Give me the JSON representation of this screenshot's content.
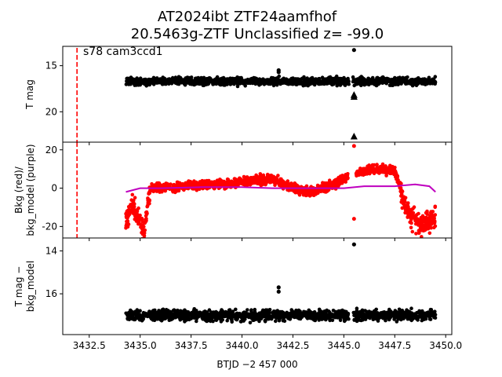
{
  "title_line1": "AT2024ibt  ZTF24aamfhof",
  "title_line2": "20.5463g-ZTF Unclassified z= -99.0",
  "annotation": "s78 cam3ccd1",
  "xlabel": "BTJD −2 457 000",
  "colors": {
    "points": "#000000",
    "bkg": "#ff0000",
    "model": "#bf00bf",
    "marker_line": "#ff0000"
  },
  "chart_data": [
    {
      "type": "scatter",
      "panel": "top",
      "ylabel": "T mag",
      "yinverted": true,
      "xlim": [
        3431.2,
        3450.3
      ],
      "ylim": [
        12.9,
        23.3
      ],
      "yticks": [
        15,
        20
      ],
      "marker_x": 3431.9,
      "band": {
        "x_start": 3434.3,
        "x_end": 3449.5,
        "center": 16.7,
        "spread": 0.6
      },
      "outliers": [
        {
          "x": 3441.8,
          "y": 15.5,
          "marker": "dot"
        },
        {
          "x": 3441.8,
          "y": 15.7,
          "marker": "dot"
        },
        {
          "x": 3445.5,
          "y": 13.3,
          "marker": "dot"
        },
        {
          "x": 3445.5,
          "y": 18.2,
          "marker": "triangle"
        },
        {
          "x": 3445.5,
          "y": 18.4,
          "marker": "triangle"
        },
        {
          "x": 3445.5,
          "y": 22.7,
          "marker": "triangle"
        }
      ]
    },
    {
      "type": "scatter",
      "panel": "middle",
      "ylabel": "Bkg (red)/\nbkg_model (purple)",
      "xlim": [
        3431.2,
        3450.3
      ],
      "ylim": [
        -26,
        24
      ],
      "yticks": [
        -20,
        0,
        20
      ],
      "marker_x": 3431.9,
      "bkg_segments": [
        {
          "x": [
            3434.3,
            3434.6,
            3434.9,
            3435.2,
            3435.5
          ],
          "y": [
            -18,
            -8,
            -15,
            -22,
            0
          ]
        },
        {
          "x": [
            3435.5,
            3437.0,
            3439.0,
            3440.5,
            3441.5,
            3442.5,
            3443.5,
            3444.5,
            3445.2
          ],
          "y": [
            0,
            1,
            2,
            4,
            5,
            0,
            -2,
            2,
            6
          ]
        },
        {
          "x": [
            3445.6,
            3446.5,
            3447.5,
            3447.9,
            3448.3,
            3448.8,
            3449.5
          ],
          "y": [
            8,
            10,
            9,
            -5,
            -15,
            -20,
            -15
          ]
        }
      ],
      "bkg_spread": 3.5,
      "bkg_outliers": [
        {
          "x": 3445.5,
          "y": 22
        },
        {
          "x": 3445.5,
          "y": -16
        }
      ],
      "model": {
        "x": [
          3434.3,
          3435.0,
          3436.0,
          3438.0,
          3440.0,
          3441.5,
          3443.0,
          3445.0,
          3446.0,
          3447.5,
          3448.5,
          3449.2,
          3449.5
        ],
        "y": [
          -2,
          0,
          0,
          0.5,
          0.5,
          0,
          0,
          0,
          1,
          1,
          2,
          1,
          -2
        ]
      }
    },
    {
      "type": "scatter",
      "panel": "bottom",
      "ylabel": "T mag −\nbkg_model",
      "yinverted": true,
      "xlim": [
        3431.2,
        3450.3
      ],
      "ylim": [
        13.4,
        17.9
      ],
      "yticks": [
        14,
        16
      ],
      "xticks": [
        3432.5,
        3435.0,
        3437.5,
        3440.0,
        3442.5,
        3445.0,
        3447.5,
        3450.0
      ],
      "xticklabels": [
        "3432.5",
        "3435.0",
        "3437.5",
        "3440.0",
        "3442.5",
        "3445.0",
        "3447.5",
        "3450.0"
      ],
      "band": {
        "x_start": 3434.3,
        "x_end": 3449.5,
        "center": 17.0,
        "spread": 0.35
      },
      "outliers": [
        {
          "x": 3441.8,
          "y": 15.7,
          "marker": "dot"
        },
        {
          "x": 3441.8,
          "y": 15.9,
          "marker": "dot"
        },
        {
          "x": 3445.5,
          "y": 13.7,
          "marker": "dot"
        }
      ]
    }
  ]
}
